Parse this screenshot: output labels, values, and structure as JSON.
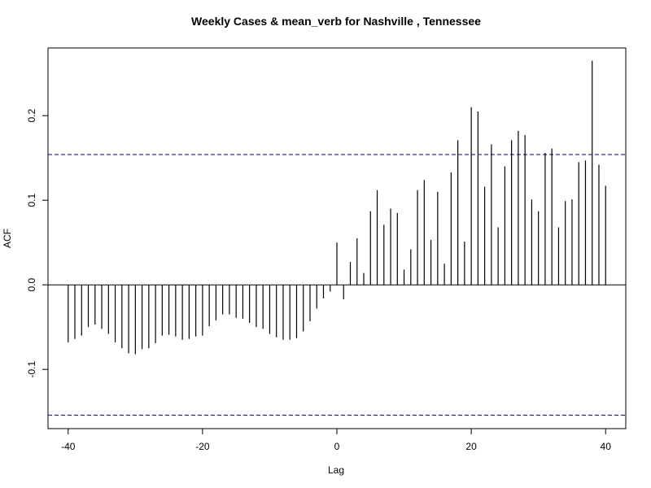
{
  "chart_data": {
    "type": "bar",
    "title": "Weekly Cases & mean_verb for Nashville , Tennessee",
    "xlabel": "Lag",
    "ylabel": "ACF",
    "xlim": [
      -43,
      43
    ],
    "ylim": [
      -0.17,
      0.28
    ],
    "x_ticks": [
      -40,
      -20,
      0,
      20,
      40
    ],
    "y_ticks": [
      -0.1,
      0.0,
      0.1,
      0.2
    ],
    "x_tick_labels": [
      "-40",
      "-20",
      "0",
      "20",
      "40"
    ],
    "y_tick_labels": [
      "-0.1",
      "0.0",
      "0.1",
      "0.2"
    ],
    "confidence_bound": 0.154,
    "confidence_line_color": "#000080",
    "bar_color": "#000000",
    "grid": false,
    "lags": [
      -40,
      -39,
      -38,
      -37,
      -36,
      -35,
      -34,
      -33,
      -32,
      -31,
      -30,
      -29,
      -28,
      -27,
      -26,
      -25,
      -24,
      -23,
      -22,
      -21,
      -20,
      -19,
      -18,
      -17,
      -16,
      -15,
      -14,
      -13,
      -12,
      -11,
      -10,
      -9,
      -8,
      -7,
      -6,
      -5,
      -4,
      -3,
      -2,
      -1,
      0,
      1,
      2,
      3,
      4,
      5,
      6,
      7,
      8,
      9,
      10,
      11,
      12,
      13,
      14,
      15,
      16,
      17,
      18,
      19,
      20,
      21,
      22,
      23,
      24,
      25,
      26,
      27,
      28,
      29,
      30,
      31,
      32,
      33,
      34,
      35,
      36,
      37,
      38,
      39,
      40
    ],
    "values": [
      -0.068,
      -0.064,
      -0.06,
      -0.05,
      -0.047,
      -0.052,
      -0.058,
      -0.068,
      -0.075,
      -0.081,
      -0.082,
      -0.076,
      -0.075,
      -0.069,
      -0.06,
      -0.059,
      -0.061,
      -0.065,
      -0.064,
      -0.061,
      -0.06,
      -0.049,
      -0.042,
      -0.035,
      -0.035,
      -0.039,
      -0.04,
      -0.045,
      -0.05,
      -0.052,
      -0.058,
      -0.062,
      -0.065,
      -0.065,
      -0.063,
      -0.055,
      -0.043,
      -0.028,
      -0.016,
      -0.008,
      0.05,
      -0.017,
      0.027,
      0.055,
      0.014,
      0.087,
      0.112,
      0.071,
      0.09,
      0.085,
      0.018,
      0.042,
      0.112,
      0.124,
      0.053,
      0.11,
      0.025,
      0.133,
      0.171,
      0.051,
      0.21,
      0.205,
      0.116,
      0.166,
      0.068,
      0.14,
      0.171,
      0.182,
      0.177,
      0.101,
      0.087,
      0.156,
      0.161,
      0.068,
      0.099,
      0.101,
      0.145,
      0.147,
      0.265,
      0.142,
      0.117
    ]
  }
}
